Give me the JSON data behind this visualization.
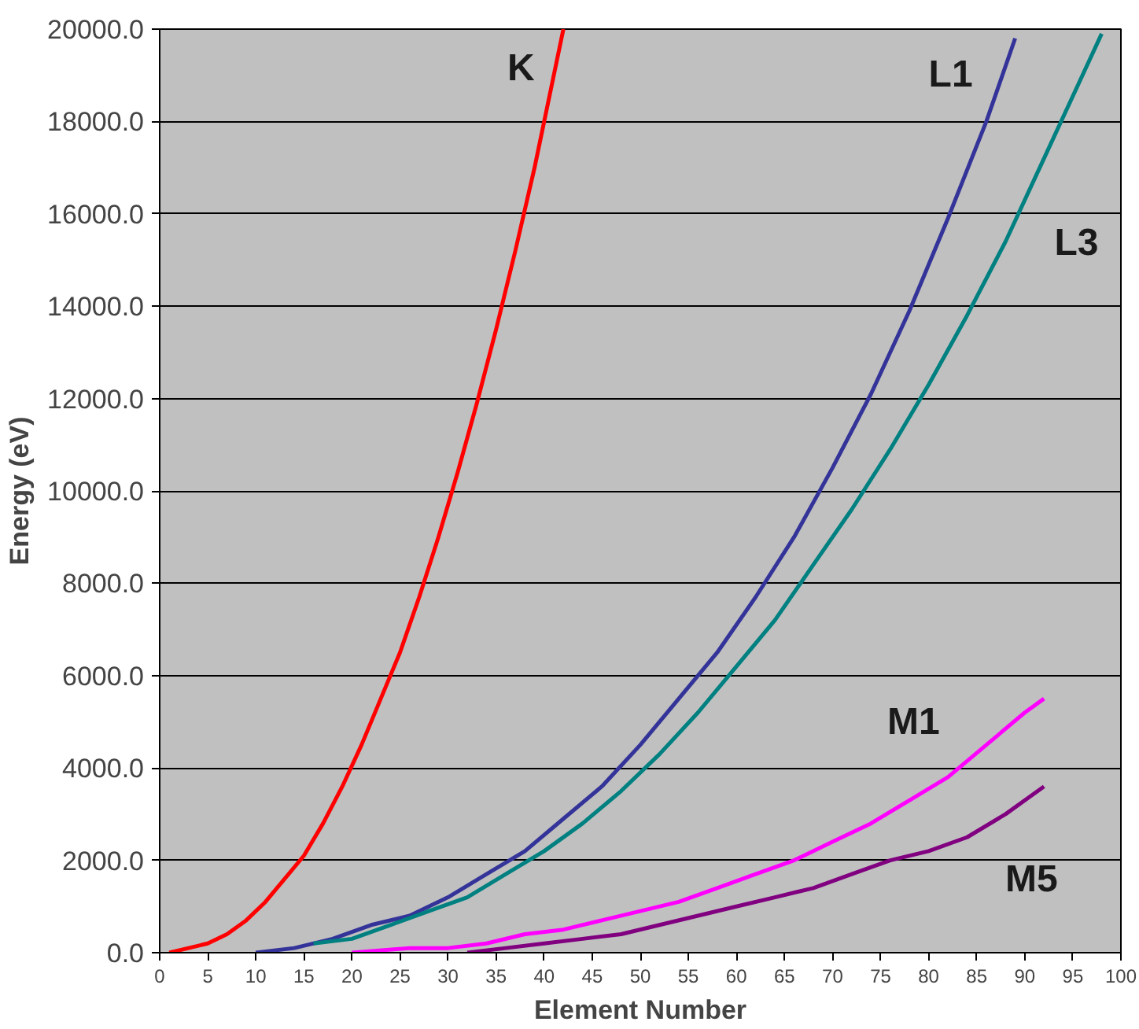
{
  "chart_data": {
    "type": "line",
    "xlabel": "Element Number",
    "ylabel": "Energy (eV)",
    "xlim": [
      0,
      100
    ],
    "xticks": [
      0,
      5,
      10,
      15,
      20,
      25,
      30,
      35,
      40,
      45,
      50,
      55,
      60,
      65,
      70,
      75,
      80,
      85,
      90,
      95,
      100
    ],
    "ylim": [
      0,
      20000
    ],
    "yticks": [
      {
        "value": 0,
        "label": "0.0"
      },
      {
        "value": 2000,
        "label": "2000.0"
      },
      {
        "value": 4000,
        "label": "4000.0"
      },
      {
        "value": 6000,
        "label": "6000.0"
      },
      {
        "value": 8000,
        "label": "8000.0"
      },
      {
        "value": 10000,
        "label": "10000.0"
      },
      {
        "value": 12000,
        "label": "12000.0"
      },
      {
        "value": 14000,
        "label": "14000.0"
      },
      {
        "value": 16000,
        "label": "16000.0"
      },
      {
        "value": 18000,
        "label": "18000.0"
      },
      {
        "value": 20000,
        "label": "20000.0"
      }
    ],
    "grid": "y",
    "marker": "none",
    "line_style": "solid",
    "series": [
      {
        "name": "K",
        "color": "#ff0000",
        "x": [
          1,
          3,
          5,
          7,
          9,
          11,
          13,
          15,
          17,
          19,
          21,
          23,
          25,
          27,
          29,
          31,
          33,
          35,
          37,
          39,
          41,
          42
        ],
        "values": [
          0,
          100,
          200,
          400,
          700,
          1100,
          1600,
          2100,
          2800,
          3600,
          4500,
          5500,
          6500,
          7700,
          9000,
          10400,
          11900,
          13500,
          15200,
          17000,
          19000,
          20000
        ]
      },
      {
        "name": "L1",
        "color": "#333399",
        "x": [
          10,
          14,
          18,
          22,
          26,
          30,
          34,
          38,
          42,
          46,
          50,
          54,
          58,
          62,
          66,
          70,
          74,
          78,
          82,
          86,
          89
        ],
        "values": [
          0,
          100,
          300,
          600,
          800,
          1200,
          1700,
          2200,
          2900,
          3600,
          4500,
          5500,
          6500,
          7700,
          9000,
          10500,
          12100,
          13900,
          15900,
          18000,
          19800
        ]
      },
      {
        "name": "L3",
        "color": "#008080",
        "x": [
          16,
          20,
          24,
          28,
          32,
          36,
          40,
          44,
          48,
          52,
          56,
          60,
          64,
          68,
          72,
          76,
          80,
          84,
          88,
          92,
          96,
          98
        ],
        "values": [
          200,
          300,
          600,
          900,
          1200,
          1700,
          2200,
          2800,
          3500,
          4300,
          5200,
          6200,
          7200,
          8400,
          9600,
          10900,
          12300,
          13800,
          15400,
          17200,
          19000,
          19900
        ]
      },
      {
        "name": "M1",
        "color": "#ff00ff",
        "x": [
          20,
          26,
          30,
          34,
          38,
          42,
          46,
          50,
          54,
          58,
          62,
          66,
          70,
          74,
          78,
          82,
          86,
          90,
          92
        ],
        "values": [
          0,
          100,
          100,
          200,
          400,
          500,
          700,
          900,
          1100,
          1400,
          1700,
          2000,
          2400,
          2800,
          3300,
          3800,
          4500,
          5200,
          5500
        ]
      },
      {
        "name": "M5",
        "color": "#800080",
        "x": [
          32,
          36,
          40,
          44,
          48,
          52,
          56,
          60,
          64,
          68,
          72,
          76,
          80,
          84,
          88,
          92
        ],
        "values": [
          0,
          100,
          200,
          300,
          400,
          600,
          800,
          1000,
          1200,
          1400,
          1700,
          2000,
          2200,
          2500,
          3000,
          3600
        ]
      }
    ]
  }
}
